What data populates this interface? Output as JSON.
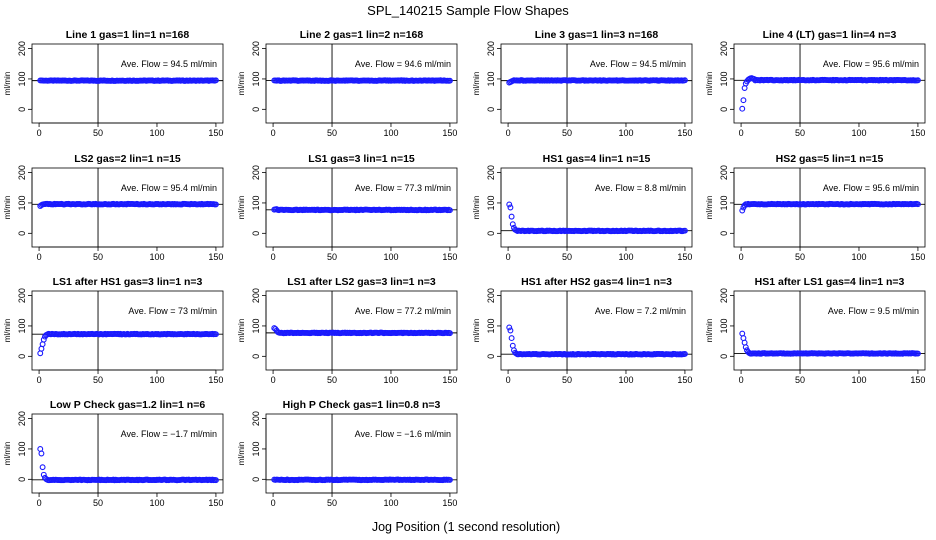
{
  "title": "SPL_140215  Sample Flow Shapes",
  "xlabel": "Jog Position (1 second resolution)",
  "ylabel": "ml/min",
  "chart_data": [
    {
      "type": "scatter",
      "title": "Line 1 gas=1 lin=1 n=168",
      "annotation": "Ave. Flow = 94.5  ml/min",
      "ave": 94.5,
      "xlim": [
        0,
        150
      ],
      "ylim": [
        0,
        200
      ],
      "yticks": [
        0,
        100,
        200
      ],
      "xticks": [
        0,
        50,
        100,
        150
      ],
      "x_range": [
        1,
        150
      ],
      "start_values": [
        95,
        95
      ],
      "plateau": 94.5,
      "plateau_from": 2
    },
    {
      "type": "scatter",
      "title": "Line 2 gas=1 lin=2 n=168",
      "annotation": "Ave. Flow = 94.6  ml/min",
      "ave": 94.6,
      "xlim": [
        0,
        150
      ],
      "ylim": [
        0,
        200
      ],
      "yticks": [
        0,
        100,
        200
      ],
      "xticks": [
        0,
        50,
        100,
        150
      ],
      "x_range": [
        1,
        150
      ],
      "start_values": [
        95,
        95
      ],
      "plateau": 94.6,
      "plateau_from": 2
    },
    {
      "type": "scatter",
      "title": "Line 3 gas=1 lin=3 n=168",
      "annotation": "Ave. Flow = 94.5  ml/min",
      "ave": 94.5,
      "xlim": [
        0,
        150
      ],
      "ylim": [
        0,
        200
      ],
      "yticks": [
        0,
        100,
        200
      ],
      "xticks": [
        0,
        50,
        100,
        150
      ],
      "x_range": [
        1,
        150
      ],
      "start_values": [
        88,
        90,
        92
      ],
      "plateau": 95,
      "plateau_from": 3
    },
    {
      "type": "scatter",
      "title": "Line 4 (LT) gas=1 lin=4 n=3",
      "annotation": "Ave. Flow = 95.6  ml/min",
      "ave": 95.6,
      "xlim": [
        0,
        150
      ],
      "ylim": [
        0,
        200
      ],
      "yticks": [
        0,
        100,
        200
      ],
      "xticks": [
        0,
        50,
        100,
        150
      ],
      "x_range": [
        1,
        150
      ],
      "start_values": [
        2,
        30,
        70,
        85,
        92,
        97,
        100,
        102,
        103,
        101,
        100
      ],
      "plateau": 96,
      "plateau_from": 11
    },
    {
      "type": "scatter",
      "title": "LS2 gas=2 lin=1 n=15",
      "annotation": "Ave. Flow = 95.4  ml/min",
      "ave": 95.4,
      "xlim": [
        0,
        150
      ],
      "ylim": [
        0,
        200
      ],
      "yticks": [
        0,
        100,
        200
      ],
      "xticks": [
        0,
        50,
        100,
        150
      ],
      "x_range": [
        1,
        150
      ],
      "start_values": [
        90,
        93,
        95
      ],
      "plateau": 96,
      "plateau_from": 3
    },
    {
      "type": "scatter",
      "title": "LS1 gas=3 lin=1 n=15",
      "annotation": "Ave. Flow = 77.3  ml/min",
      "ave": 77.3,
      "xlim": [
        0,
        150
      ],
      "ylim": [
        0,
        200
      ],
      "yticks": [
        0,
        100,
        200
      ],
      "xticks": [
        0,
        50,
        100,
        150
      ],
      "x_range": [
        1,
        150
      ],
      "start_values": [
        78,
        79,
        80
      ],
      "plateau": 77,
      "plateau_from": 3
    },
    {
      "type": "scatter",
      "title": "HS1 gas=4 lin=1 n=15",
      "annotation": "Ave. Flow = 8.8  ml/min",
      "ave": 8.8,
      "xlim": [
        0,
        150
      ],
      "ylim": [
        0,
        200
      ],
      "yticks": [
        0,
        100,
        200
      ],
      "xticks": [
        0,
        50,
        100,
        150
      ],
      "x_range": [
        1,
        150
      ],
      "start_values": [
        95,
        85,
        55,
        30,
        18,
        12,
        10
      ],
      "plateau": 8,
      "plateau_from": 7
    },
    {
      "type": "scatter",
      "title": "HS2 gas=5 lin=1 n=15",
      "annotation": "Ave. Flow = 95.6  ml/min",
      "ave": 95.6,
      "xlim": [
        0,
        150
      ],
      "ylim": [
        0,
        200
      ],
      "yticks": [
        0,
        100,
        200
      ],
      "xticks": [
        0,
        50,
        100,
        150
      ],
      "x_range": [
        1,
        150
      ],
      "start_values": [
        75,
        85,
        92,
        96
      ],
      "plateau": 96,
      "plateau_from": 4
    },
    {
      "type": "scatter",
      "title": "LS1 after HS1 gas=3 lin=1 n=3",
      "annotation": "Ave. Flow = 73  ml/min",
      "ave": 73,
      "xlim": [
        0,
        150
      ],
      "ylim": [
        0,
        200
      ],
      "yticks": [
        0,
        100,
        200
      ],
      "xticks": [
        0,
        50,
        100,
        150
      ],
      "x_range": [
        1,
        150
      ],
      "start_values": [
        10,
        25,
        40,
        55,
        65,
        70,
        72
      ],
      "plateau": 73,
      "plateau_from": 7
    },
    {
      "type": "scatter",
      "title": "LS1 after LS2 gas=3 lin=1 n=3",
      "annotation": "Ave. Flow = 77.2  ml/min",
      "ave": 77.2,
      "xlim": [
        0,
        150
      ],
      "ylim": [
        0,
        200
      ],
      "yticks": [
        0,
        100,
        200
      ],
      "xticks": [
        0,
        50,
        100,
        150
      ],
      "x_range": [
        1,
        150
      ],
      "start_values": [
        93,
        90,
        85,
        80
      ],
      "plateau": 77,
      "plateau_from": 4
    },
    {
      "type": "scatter",
      "title": "HS1 after HS2 gas=4 lin=1 n=3",
      "annotation": "Ave. Flow = 7.2  ml/min",
      "ave": 7.2,
      "xlim": [
        0,
        150
      ],
      "ylim": [
        0,
        200
      ],
      "yticks": [
        0,
        100,
        200
      ],
      "xticks": [
        0,
        50,
        100,
        150
      ],
      "x_range": [
        1,
        150
      ],
      "start_values": [
        95,
        85,
        60,
        35,
        20,
        12,
        9
      ],
      "plateau": 7,
      "plateau_from": 7
    },
    {
      "type": "scatter",
      "title": "HS1 after LS1 gas=4 lin=1 n=3",
      "annotation": "Ave. Flow = 9.5  ml/min",
      "ave": 9.5,
      "xlim": [
        0,
        150
      ],
      "ylim": [
        0,
        200
      ],
      "yticks": [
        0,
        100,
        200
      ],
      "xticks": [
        0,
        50,
        100,
        150
      ],
      "x_range": [
        1,
        150
      ],
      "start_values": [
        75,
        60,
        45,
        30,
        20,
        14,
        11
      ],
      "plateau": 9.5,
      "plateau_from": 7
    },
    {
      "type": "scatter",
      "title": "Low P Check gas=1.2 lin=1 n=6",
      "annotation": "Ave. Flow = −1.7  ml/min",
      "ave": -1.7,
      "xlim": [
        0,
        150
      ],
      "ylim": [
        0,
        200
      ],
      "yticks": [
        0,
        100,
        200
      ],
      "xticks": [
        0,
        50,
        100,
        150
      ],
      "x_range": [
        1,
        150
      ],
      "start_values": [
        100,
        85,
        40,
        15,
        5,
        1
      ],
      "plateau": -2,
      "plateau_from": 6
    },
    {
      "type": "scatter",
      "title": "High P Check gas=1 lin=0.8 n=3",
      "annotation": "Ave. Flow = −1.6  ml/min",
      "ave": -1.6,
      "xlim": [
        0,
        150
      ],
      "ylim": [
        0,
        200
      ],
      "yticks": [
        0,
        100,
        200
      ],
      "xticks": [
        0,
        50,
        100,
        150
      ],
      "x_range": [
        1,
        150
      ],
      "start_values": [
        -1,
        -2
      ],
      "plateau": -1.6,
      "plateau_from": 2
    }
  ]
}
